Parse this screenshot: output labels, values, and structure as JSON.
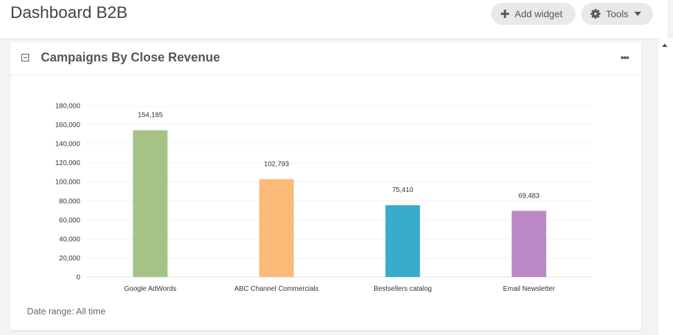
{
  "header": {
    "title": "Dashboard B2B",
    "add_widget_label": "Add widget",
    "tools_label": "Tools"
  },
  "widget": {
    "title": "Campaigns By Close Revenue",
    "footer": "Date range: All time"
  },
  "chart_data": {
    "type": "bar",
    "categories": [
      "Google AdWords",
      "ABC Channel Commercials",
      "Bestsellers catalog",
      "Email Newsletter"
    ],
    "values": [
      154185,
      102793,
      75410,
      69483
    ],
    "data_labels": [
      "154,185",
      "102,793",
      "75,410",
      "69,483"
    ],
    "colors": [
      "#a5c386",
      "#fcbb79",
      "#38adcb",
      "#bb88c6"
    ],
    "yticks": [
      "0",
      "20,000",
      "40,000",
      "60,000",
      "80,000",
      "100,000",
      "120,000",
      "140,000",
      "160,000",
      "180,000"
    ],
    "ylim": [
      0,
      180000
    ],
    "title": "",
    "xlabel": "",
    "ylabel": "",
    "grid": true
  }
}
